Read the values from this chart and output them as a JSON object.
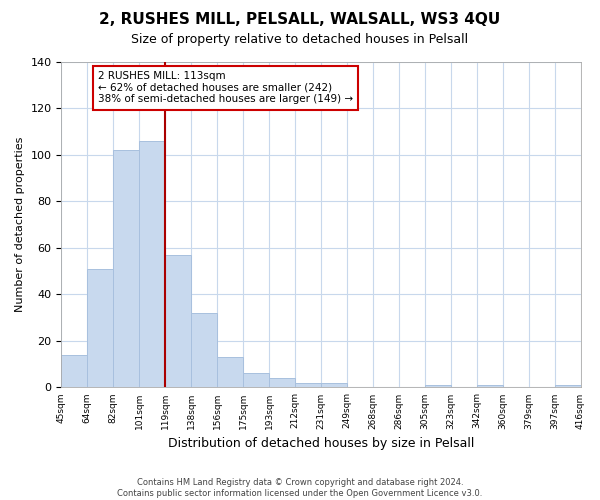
{
  "title": "2, RUSHES MILL, PELSALL, WALSALL, WS3 4QU",
  "subtitle": "Size of property relative to detached houses in Pelsall",
  "xlabel": "Distribution of detached houses by size in Pelsall",
  "ylabel": "Number of detached properties",
  "bar_values": [
    14,
    51,
    102,
    106,
    57,
    32,
    13,
    6,
    4,
    2,
    2,
    0,
    0,
    0,
    1,
    0,
    1,
    0,
    0,
    1
  ],
  "bin_labels": [
    "45sqm",
    "64sqm",
    "82sqm",
    "101sqm",
    "119sqm",
    "138sqm",
    "156sqm",
    "175sqm",
    "193sqm",
    "212sqm",
    "231sqm",
    "249sqm",
    "268sqm",
    "286sqm",
    "305sqm",
    "323sqm",
    "342sqm",
    "360sqm",
    "379sqm",
    "397sqm",
    "416sqm"
  ],
  "bar_color": "#c8d9ee",
  "bar_edge_color": "#a8c0de",
  "vline_x": 4,
  "vline_color": "#aa0000",
  "annotation_text": "2 RUSHES MILL: 113sqm\n← 62% of detached houses are smaller (242)\n38% of semi-detached houses are larger (149) →",
  "annotation_box_edge": "#cc0000",
  "ylim": [
    0,
    140
  ],
  "yticks": [
    0,
    20,
    40,
    60,
    80,
    100,
    120,
    140
  ],
  "footer_text": "Contains HM Land Registry data © Crown copyright and database right 2024.\nContains public sector information licensed under the Open Government Licence v3.0.",
  "background_color": "#ffffff",
  "grid_color": "#c8d8ec"
}
